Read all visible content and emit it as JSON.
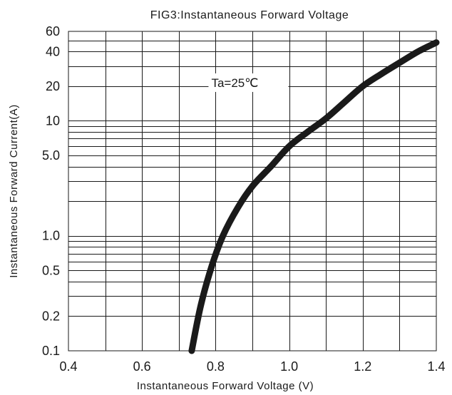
{
  "chart_data": {
    "type": "line",
    "title": "FIG3:Instantaneous Forward Voltage",
    "xlabel": "Instantaneous Forward Voltage (V)",
    "ylabel": "Instantaneous Forward Current(A)",
    "xlim": [
      0.4,
      1.4
    ],
    "ylim": [
      0.1,
      60
    ],
    "yscale": "log",
    "grid": true,
    "x_ticks": [
      0.4,
      0.6,
      0.8,
      1.0,
      1.2,
      1.4
    ],
    "x_tick_labels": [
      "0.4",
      "0.6",
      "0.8",
      "1.0",
      "1.2",
      "1.4"
    ],
    "y_ticks": [
      0.1,
      0.2,
      0.5,
      1.0,
      5.0,
      10,
      20,
      40,
      60
    ],
    "y_tick_labels": [
      "0.1",
      "0.2",
      "0.5",
      "1.0",
      "5.0",
      "10",
      "20",
      "40",
      "60"
    ],
    "annotations": [
      {
        "text": "Ta=25℃"
      }
    ],
    "series": [
      {
        "x": [
          0.735,
          0.76,
          0.79,
          0.82,
          0.86,
          0.9,
          0.95,
          1.0,
          1.05,
          1.1,
          1.15,
          1.2,
          1.25,
          1.3,
          1.35,
          1.4
        ],
        "y": [
          0.1,
          0.25,
          0.55,
          1.0,
          1.75,
          2.7,
          4.0,
          6.0,
          8.0,
          10.5,
          14.5,
          20.0,
          25.5,
          32.0,
          40.0,
          48.0
        ]
      }
    ]
  }
}
